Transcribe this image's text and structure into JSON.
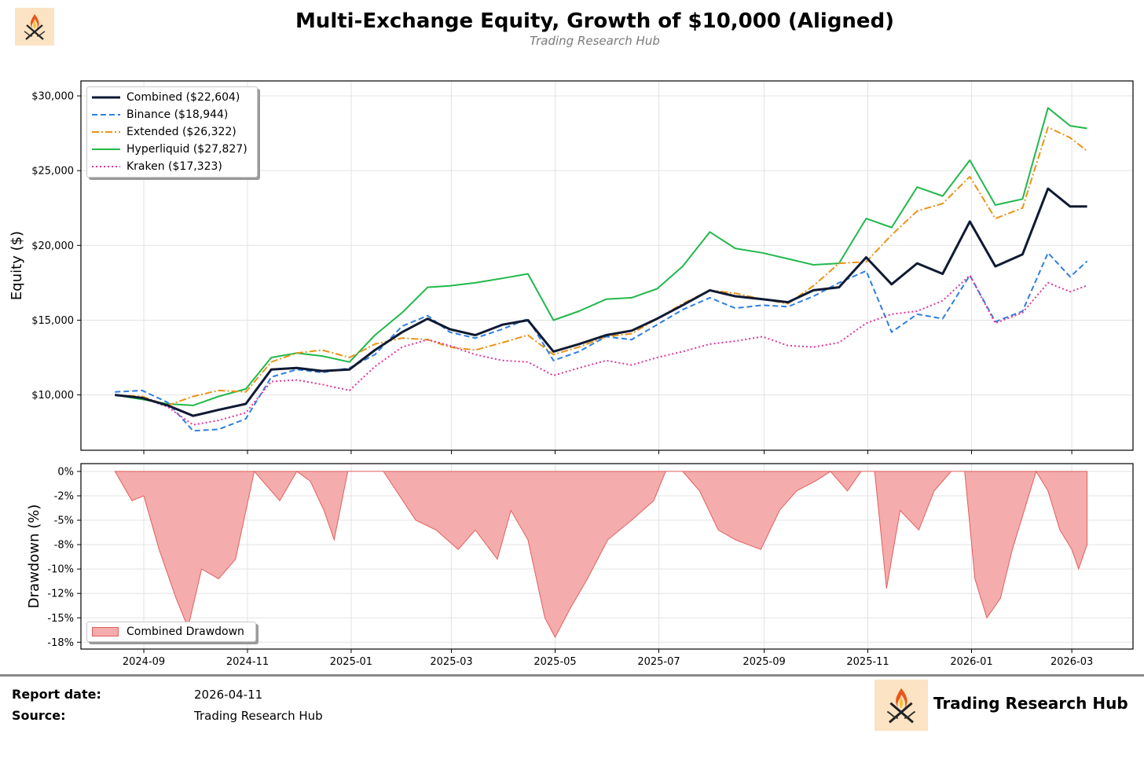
{
  "header": {
    "title": "Multi-Exchange Equity, Growth of $10,000 (Aligned)",
    "subtitle": "Trading Research Hub",
    "logo_icon": "flame-crossed-swords-logo"
  },
  "footer": {
    "report_date_label": "Report date:",
    "report_date_value": "2026-04-11",
    "source_label": "Source:",
    "source_value": "Trading Research Hub",
    "brand_name": "Trading Research Hub",
    "logo_icon": "flame-crossed-swords-logo"
  },
  "chart_data": [
    {
      "type": "line",
      "ylabel": "Equity ($)",
      "xlabel": "",
      "x_tick_labels": [
        "2024-09",
        "2024-11",
        "2025-01",
        "2025-03",
        "2025-05",
        "2025-07",
        "2025-09",
        "2025-11",
        "2026-01",
        "2026-03"
      ],
      "y_tick_labels": [
        "$10,000",
        "$15,000",
        "$20,000",
        "$25,000",
        "$30,000"
      ],
      "y_ticks": [
        10000,
        15000,
        20000,
        25000,
        30000
      ],
      "ylim": [
        6300,
        31000
      ],
      "xlim": [
        "2024-07-26",
        "2026-04-06"
      ],
      "grid": true,
      "legend_position": "top-left",
      "x": [
        "2024-08-15",
        "2024-08-31",
        "2024-09-15",
        "2024-09-30",
        "2024-10-15",
        "2024-10-31",
        "2024-11-15",
        "2024-11-30",
        "2024-12-15",
        "2024-12-31",
        "2025-01-15",
        "2025-01-31",
        "2025-02-15",
        "2025-02-28",
        "2025-03-15",
        "2025-03-31",
        "2025-04-15",
        "2025-04-30",
        "2025-05-15",
        "2025-05-31",
        "2025-06-15",
        "2025-06-30",
        "2025-07-15",
        "2025-07-31",
        "2025-08-15",
        "2025-08-31",
        "2025-09-15",
        "2025-09-30",
        "2025-10-15",
        "2025-10-31",
        "2025-11-15",
        "2025-11-30",
        "2025-12-15",
        "2025-12-31",
        "2026-01-15",
        "2026-01-31",
        "2026-02-15",
        "2026-02-28",
        "2026-03-10"
      ],
      "series": [
        {
          "name": "Combined ($22,604)",
          "color": "#0f1a33",
          "style": "solid",
          "width": 3,
          "values": [
            10000,
            9800,
            9300,
            8600,
            9000,
            9400,
            11700,
            11800,
            11600,
            11700,
            13000,
            14200,
            15100,
            14400,
            14000,
            14700,
            15000,
            12900,
            13400,
            14000,
            14300,
            15100,
            16000,
            17000,
            16600,
            16400,
            16200,
            17000,
            17200,
            19200,
            17400,
            18800,
            18100,
            21600,
            18600,
            19400,
            23800,
            22600,
            22600
          ]
        },
        {
          "name": "Binance ($18,944)",
          "color": "#2f7fe0",
          "style": "dashed",
          "width": 2,
          "values": [
            10200,
            10300,
            9500,
            7600,
            7700,
            8400,
            11200,
            11700,
            11500,
            11800,
            12700,
            14600,
            15300,
            14200,
            13800,
            14400,
            15100,
            12300,
            12900,
            13900,
            13700,
            14700,
            15700,
            16500,
            15800,
            16000,
            15900,
            16600,
            17500,
            18300,
            14200,
            15400,
            15100,
            18000,
            14900,
            15600,
            19500,
            17900,
            18944
          ]
        },
        {
          "name": "Extended ($26,322)",
          "color": "#ea9316",
          "style": "dashdot",
          "width": 2,
          "values": [
            10000,
            9900,
            9300,
            9900,
            10300,
            10200,
            12200,
            12800,
            13000,
            12500,
            13400,
            13800,
            13700,
            13200,
            13000,
            13500,
            14000,
            12700,
            13200,
            13900,
            14100,
            15100,
            16100,
            17000,
            16800,
            16400,
            16100,
            17300,
            18800,
            18900,
            20700,
            22300,
            22800,
            24600,
            21800,
            22500,
            27900,
            27200,
            26322
          ]
        },
        {
          "name": "Hyperliquid ($27,827)",
          "color": "#22b84c",
          "style": "solid",
          "width": 2,
          "values": [
            10000,
            9700,
            9400,
            9300,
            9900,
            10400,
            12500,
            12800,
            12600,
            12200,
            14000,
            15500,
            17200,
            17300,
            17500,
            17800,
            18100,
            15000,
            15600,
            16400,
            16500,
            17100,
            18600,
            20900,
            19800,
            19500,
            19100,
            18700,
            18800,
            21800,
            21200,
            23900,
            23300,
            25700,
            22700,
            23100,
            29200,
            28000,
            27827
          ]
        },
        {
          "name": "Kraken ($17,323)",
          "color": "#e0359a",
          "style": "dotted",
          "width": 2,
          "values": [
            10000,
            9800,
            9200,
            8000,
            8300,
            8800,
            10900,
            11000,
            10700,
            10300,
            11900,
            13200,
            13700,
            13300,
            12700,
            12300,
            12200,
            11300,
            11800,
            12300,
            12000,
            12500,
            12900,
            13400,
            13600,
            13900,
            13300,
            13200,
            13500,
            14800,
            15400,
            15600,
            16300,
            18000,
            14800,
            15500,
            17500,
            16900,
            17323
          ]
        }
      ]
    },
    {
      "type": "area",
      "ylabel": "Drawdown (%)",
      "xlabel": "",
      "y_tick_labels": [
        "0%",
        "-2%",
        "-5%",
        "-8%",
        "-10%",
        "-12%",
        "-15%",
        "-18%"
      ],
      "y_ticks": [
        0,
        -2.5,
        -5,
        -7.5,
        -10,
        -12.5,
        -15,
        -17.5
      ],
      "ylim": [
        -18.2,
        0.8
      ],
      "x_tick_labels": [
        "2024-09",
        "2024-11",
        "2025-01",
        "2025-03",
        "2025-05",
        "2025-07",
        "2025-09",
        "2025-11",
        "2026-01",
        "2026-03"
      ],
      "grid": true,
      "legend_position": "bottom-left",
      "series": [
        {
          "name": "Combined Drawdown",
          "color": "#f4acac",
          "edge_color": "#e06060",
          "x": [
            "2024-08-15",
            "2024-08-25",
            "2024-09-01",
            "2024-09-10",
            "2024-09-20",
            "2024-09-27",
            "2024-10-05",
            "2024-10-15",
            "2024-10-25",
            "2024-11-05",
            "2024-11-10",
            "2024-11-20",
            "2024-11-30",
            "2024-12-08",
            "2024-12-16",
            "2024-12-22",
            "2024-12-30",
            "2025-01-05",
            "2025-01-20",
            "2025-02-08",
            "2025-02-20",
            "2025-03-05",
            "2025-03-15",
            "2025-03-28",
            "2025-04-05",
            "2025-04-15",
            "2025-04-25",
            "2025-05-01",
            "2025-05-10",
            "2025-05-20",
            "2025-06-01",
            "2025-06-15",
            "2025-06-28",
            "2025-07-05",
            "2025-07-15",
            "2025-07-25",
            "2025-08-05",
            "2025-08-15",
            "2025-08-30",
            "2025-09-10",
            "2025-09-20",
            "2025-10-01",
            "2025-10-10",
            "2025-10-20",
            "2025-10-28",
            "2025-11-05",
            "2025-11-12",
            "2025-11-20",
            "2025-12-01",
            "2025-12-10",
            "2025-12-20",
            "2025-12-28",
            "2026-01-03",
            "2026-01-10",
            "2026-01-18",
            "2026-01-25",
            "2026-02-01",
            "2026-02-08",
            "2026-02-15",
            "2026-02-22",
            "2026-03-01",
            "2026-03-05",
            "2026-03-10"
          ],
          "values": [
            0,
            -3,
            -2.5,
            -8,
            -13,
            -16,
            -10,
            -11,
            -9,
            0,
            -1,
            -3,
            0,
            -1,
            -4,
            -7,
            0,
            0,
            0,
            -5,
            -6,
            -8,
            -6,
            -9,
            -4,
            -7,
            -15,
            -17,
            -14,
            -11,
            -7,
            -5,
            -3,
            0,
            0,
            -2,
            -6,
            -7,
            -8,
            -4,
            -2,
            -1,
            0,
            -2,
            0,
            0,
            -12,
            -4,
            -6,
            -2,
            0,
            0,
            -11,
            -15,
            -13,
            -8,
            -4,
            0,
            -2,
            -6,
            -8,
            -10,
            -7.5
          ]
        }
      ]
    }
  ]
}
